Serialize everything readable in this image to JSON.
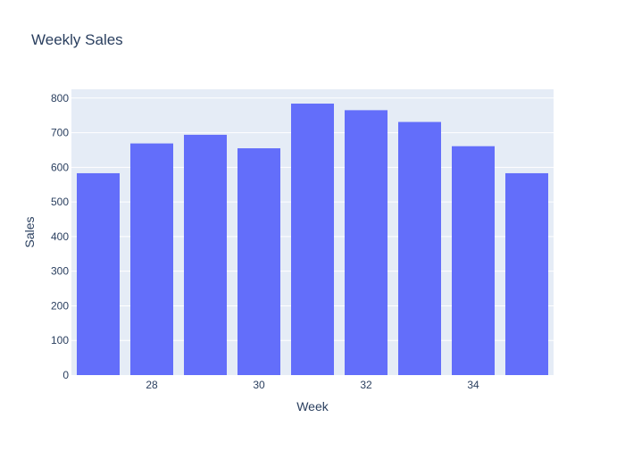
{
  "chart_data": {
    "type": "bar",
    "title": "Weekly Sales",
    "xlabel": "Week",
    "ylabel": "Sales",
    "x": [
      27,
      28,
      29,
      30,
      31,
      32,
      33,
      34,
      35
    ],
    "values": [
      583,
      669,
      694,
      655,
      784,
      765,
      731,
      661,
      583
    ],
    "xticks": [
      28,
      30,
      32,
      34
    ],
    "xlim": [
      26.5,
      35.5
    ],
    "yticks": [
      0,
      100,
      200,
      300,
      400,
      500,
      600,
      700,
      800
    ],
    "ylim": [
      0,
      825.3
    ],
    "grid": true,
    "legend": "none",
    "colors": {
      "bar": "#636efa",
      "plot_bg": "#e5ecf6",
      "grid": "#ffffff",
      "text": "#2a3f5f"
    }
  }
}
